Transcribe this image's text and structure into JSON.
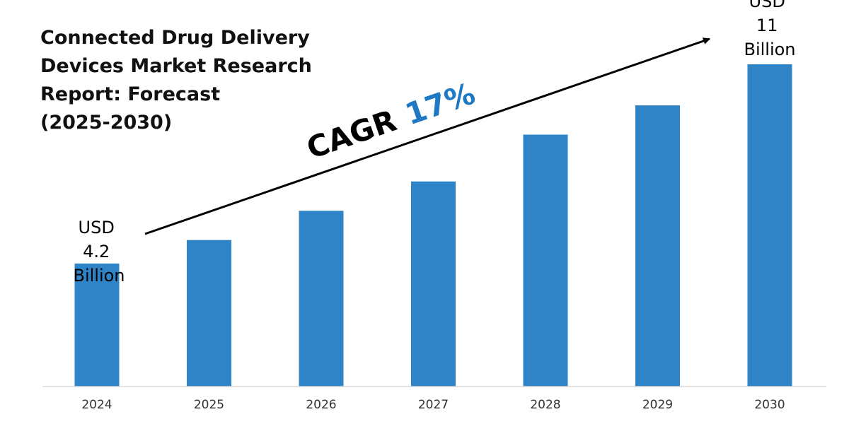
{
  "chart_data": {
    "type": "bar",
    "title_lines": [
      "Connected Drug Delivery",
      "Devices Market Research",
      "Report: Forecast",
      "(2025-2030)"
    ],
    "categories": [
      "2024",
      "2025",
      "2026",
      "2027",
      "2028",
      "2029",
      "2030"
    ],
    "values": [
      4.2,
      5.0,
      6.0,
      7.0,
      8.6,
      9.6,
      11.0
    ],
    "unit": "USD Billion",
    "ylim": [
      0,
      11.7
    ],
    "bar_color": "#2e84c6",
    "grid": false,
    "annotations": {
      "start": [
        "USD",
        "4.2",
        "Billion"
      ],
      "end": [
        "USD",
        "11",
        "Billion"
      ],
      "cagr_label": "CAGR",
      "cagr_value": "17%",
      "cagr_color": "#1f78c4"
    }
  }
}
